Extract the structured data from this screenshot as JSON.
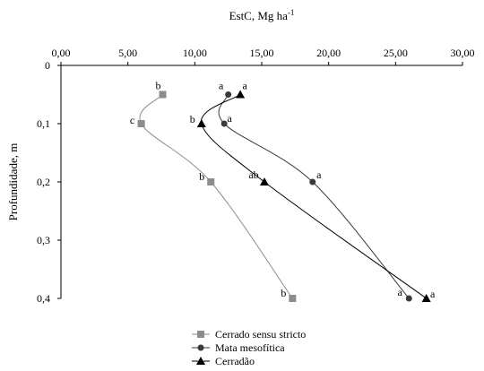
{
  "chart_data": {
    "type": "line",
    "orientation": "depth-profile",
    "xlabel": "EstC, Mg ha",
    "xlabel_sup": "-1",
    "ylabel": "Profundidade,  m",
    "x_axis_position": "top",
    "y_axis_inverted": true,
    "xlim": [
      0,
      30
    ],
    "ylim": [
      0,
      0.4
    ],
    "x_ticks": [
      0,
      5,
      10,
      15,
      20,
      25,
      30
    ],
    "x_tick_labels": [
      "0,00",
      "5,00",
      "10,00",
      "15,00",
      "20,00",
      "25,00",
      "30,00"
    ],
    "y_ticks": [
      0,
      0.1,
      0.2,
      0.3,
      0.4
    ],
    "y_tick_labels": [
      "0",
      "0,1",
      "0,2",
      "0,3",
      "0,4"
    ],
    "grid": false,
    "legend_position": "bottom-center",
    "series": [
      {
        "name": "Cerrado sensu stricto",
        "marker": "square",
        "color": "#8c8c8c",
        "points": [
          {
            "x": 7.6,
            "y": 0.05,
            "label": "b"
          },
          {
            "x": 6.0,
            "y": 0.1,
            "label": "c"
          },
          {
            "x": 11.2,
            "y": 0.2,
            "label": "b"
          },
          {
            "x": 17.3,
            "y": 0.4,
            "label": "b"
          }
        ]
      },
      {
        "name": "Mata mesofítica",
        "marker": "circle",
        "color": "#3a3a3a",
        "points": [
          {
            "x": 12.5,
            "y": 0.05,
            "label": "a"
          },
          {
            "x": 12.2,
            "y": 0.1,
            "label": "a"
          },
          {
            "x": 18.8,
            "y": 0.2,
            "label": "a"
          },
          {
            "x": 26.0,
            "y": 0.4,
            "label": "a"
          }
        ]
      },
      {
        "name": "Cerradão",
        "marker": "triangle",
        "color": "#000000",
        "points": [
          {
            "x": 13.4,
            "y": 0.05,
            "label": "a"
          },
          {
            "x": 10.5,
            "y": 0.1,
            "label": "b"
          },
          {
            "x": 15.2,
            "y": 0.2,
            "label": "ab"
          },
          {
            "x": 27.3,
            "y": 0.4,
            "label": "a"
          }
        ]
      }
    ]
  }
}
